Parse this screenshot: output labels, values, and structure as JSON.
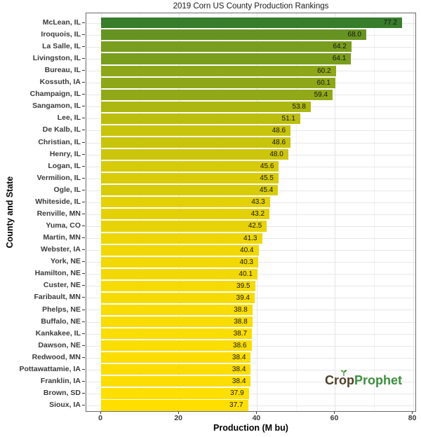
{
  "title": "2019 Corn US County Production Rankings",
  "x_axis": {
    "label": "Production (M bu)",
    "ticks": [
      0,
      20,
      40,
      60,
      80
    ],
    "minor_ticks": [
      10,
      30,
      50,
      70
    ]
  },
  "y_axis": {
    "label": "County and State"
  },
  "logo": {
    "part1": "Crop",
    "part2": "Prophet",
    "part1_color": "#523f28",
    "part2_color": "#3e8e3e",
    "sprout_color_left": "#56ad3f",
    "sprout_color_right": "#2e7d31"
  },
  "chart_data": {
    "type": "bar",
    "orientation": "horizontal",
    "title": "2019 Corn US County Production Rankings",
    "xlabel": "Production (M bu)",
    "ylabel": "County and State",
    "xlim": [
      0,
      80
    ],
    "grid": true,
    "value_labels": "inside-end, 1 decimal",
    "categories": [
      "McLean, IL",
      "Iroquois, IL",
      "La Salle, IL",
      "Livingston, IL",
      "Bureau, IL",
      "Kossuth, IA",
      "Champaign, IL",
      "Sangamon, IL",
      "Lee, IL",
      "De Kalb, IL",
      "Christian, IL",
      "Henry, IL",
      "Logan, IL",
      "Vermilion, IL",
      "Ogle, IL",
      "Whiteside, IL",
      "Renville, MN",
      "Yuma, CO",
      "Martin, MN",
      "Webster, IA",
      "York, NE",
      "Hamilton, NE",
      "Custer, NE",
      "Faribault, MN",
      "Phelps, NE",
      "Buffalo, NE",
      "Kankakee, IL",
      "Dawson, NE",
      "Redwood, MN",
      "Pottawattamie, IA",
      "Franklin, IA",
      "Brown, SD",
      "Sioux, IA"
    ],
    "values": [
      77.2,
      68.0,
      64.2,
      64.1,
      60.2,
      60.1,
      59.4,
      53.8,
      51.1,
      48.6,
      48.6,
      48.0,
      45.6,
      45.5,
      45.4,
      43.3,
      43.2,
      42.5,
      41.3,
      40.4,
      40.3,
      40.1,
      39.5,
      39.4,
      38.8,
      38.8,
      38.7,
      38.6,
      38.4,
      38.4,
      38.4,
      37.9,
      37.7
    ],
    "color_scale": {
      "type": "linear-by-value",
      "low_value": 37.7,
      "high_value": 77.2,
      "low_color": "#FFDF00",
      "high_color": "#377D2C"
    }
  }
}
